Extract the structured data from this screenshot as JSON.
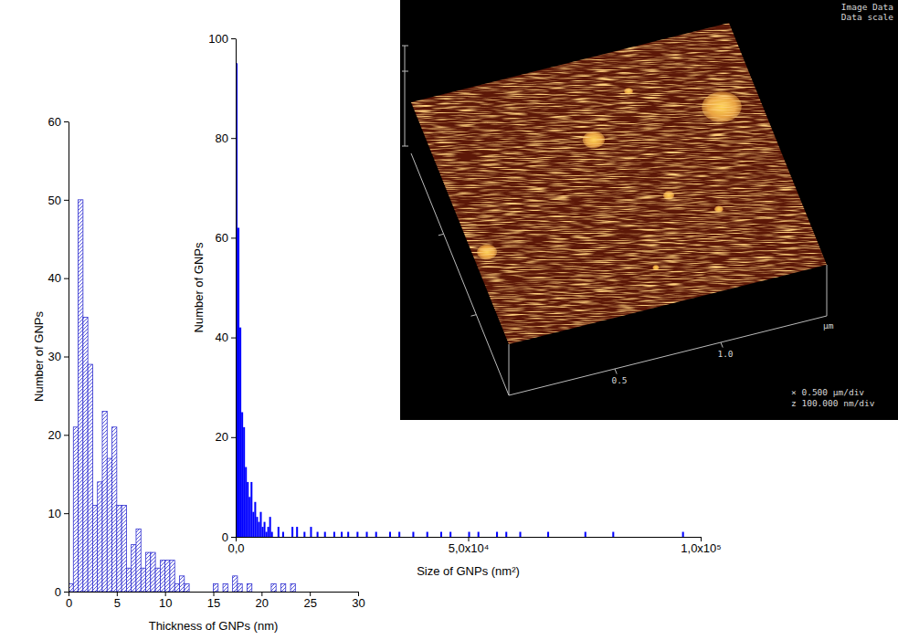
{
  "chart_data": [
    {
      "type": "histogram",
      "x_label": "Thickness of GNPs (nm)",
      "y_label": "Number of GNPs",
      "color": "#2f2fd0",
      "bins": [
        0,
        0.5,
        1,
        1.5,
        2,
        2.5,
        3,
        3.5,
        4,
        4.5,
        5,
        5.5,
        6,
        6.5,
        7,
        7.5,
        8,
        8.5,
        9,
        9.5,
        10,
        10.5,
        11,
        11.5,
        12,
        12.5,
        13,
        13.5,
        14,
        14.5,
        15,
        15.5,
        16,
        16.5,
        17,
        17.5,
        18,
        18.5,
        19,
        19.5,
        20,
        20.5,
        21,
        21.5,
        22,
        22.5,
        23,
        23.5
      ],
      "values": [
        1,
        21,
        50,
        35,
        29,
        11,
        14,
        23,
        17,
        21,
        11,
        11,
        3,
        6,
        8,
        3,
        5,
        5,
        3,
        4,
        4,
        4,
        1,
        2,
        1,
        0,
        0,
        0,
        0,
        0,
        1,
        0,
        1,
        0,
        2,
        1,
        0,
        1,
        0,
        0,
        0,
        0,
        1,
        0,
        1,
        0,
        1
      ],
      "xlim": [
        0,
        30
      ],
      "xticks": [
        0,
        5,
        10,
        15,
        20,
        25,
        30
      ],
      "ylim": [
        0,
        60
      ],
      "yticks": [
        0,
        10,
        20,
        30,
        40,
        50,
        60
      ]
    },
    {
      "type": "histogram",
      "x_label": "Size of GNPs (nm²)",
      "y_label": "Number of GNPs",
      "color": "#0000ff",
      "bins": [
        0,
        400,
        800,
        1200,
        1600,
        2000,
        2400,
        2800,
        3200,
        3600,
        4000,
        4400,
        4800,
        5200,
        5600,
        6000,
        6400,
        6800,
        7200,
        7600,
        8000,
        9000,
        9400,
        10000,
        10400,
        12000,
        12400,
        13000,
        13400,
        14600,
        15000,
        16000,
        16400,
        17400,
        17800,
        19000,
        19400,
        21000,
        21400,
        22600,
        23000,
        24000,
        24400,
        26000,
        26400,
        28000,
        28400,
        30000,
        30400,
        33000,
        33400,
        35000,
        35400,
        38000,
        38400,
        41000,
        41400,
        44000,
        44400,
        46000,
        46400,
        50000,
        50400,
        52000,
        52400,
        56000,
        56400,
        58000,
        58400,
        61000,
        61400,
        67000,
        67400,
        75000,
        75400,
        81000,
        81400,
        96000,
        96400
      ],
      "values": [
        95,
        62,
        42,
        25,
        22,
        14,
        11,
        8,
        11,
        5,
        7,
        4,
        3,
        5,
        2,
        3,
        1,
        2,
        4,
        1,
        0,
        2,
        0,
        1,
        0,
        2,
        0,
        2,
        0,
        1,
        0,
        2,
        0,
        1,
        0,
        1,
        0,
        1,
        0,
        1,
        0,
        1,
        0,
        1,
        0,
        1,
        0,
        1,
        0,
        1,
        0,
        1,
        0,
        1,
        0,
        1,
        0,
        1,
        0,
        1,
        0,
        1,
        0,
        1,
        0,
        1,
        0,
        1,
        0,
        1,
        0,
        1,
        0,
        1,
        0,
        1,
        0,
        1
      ],
      "xlim": [
        0,
        100000
      ],
      "xticks": [
        {
          "value": 0,
          "label": "0,0"
        },
        {
          "value": 50000,
          "label": "5,0x10⁴"
        },
        {
          "value": 100000,
          "label": "1,0x10⁵"
        }
      ],
      "ylim": [
        0,
        100
      ],
      "yticks": [
        0,
        20,
        40,
        60,
        80,
        100
      ]
    },
    {
      "type": "surface",
      "annotations": [
        "Image Data",
        "Data scale",
        "× 0.500 μm/div",
        "z 100.000 nm/div"
      ],
      "x_label": "μm",
      "xlim": [
        0,
        1.5
      ],
      "xticks": [
        0.5,
        {
          "value": 1,
          "label": "1.0"
        }
      ],
      "ylim": [
        0,
        1.5
      ],
      "yticks": [
        0.5,
        1
      ],
      "tick_labels": "x",
      "color": "#e8a040",
      "x": [
        1.323,
        0.718,
        0.951,
        0.066,
        0.943,
        1.134,
        0.763
      ],
      "y": [
        1.037,
        1.032,
        1.256,
        0.55,
        0.613,
        0.465,
        0.225
      ],
      "size": [
        0.09,
        0.05,
        0.02,
        0.045,
        0.025,
        0.02,
        0.015
      ]
    }
  ]
}
